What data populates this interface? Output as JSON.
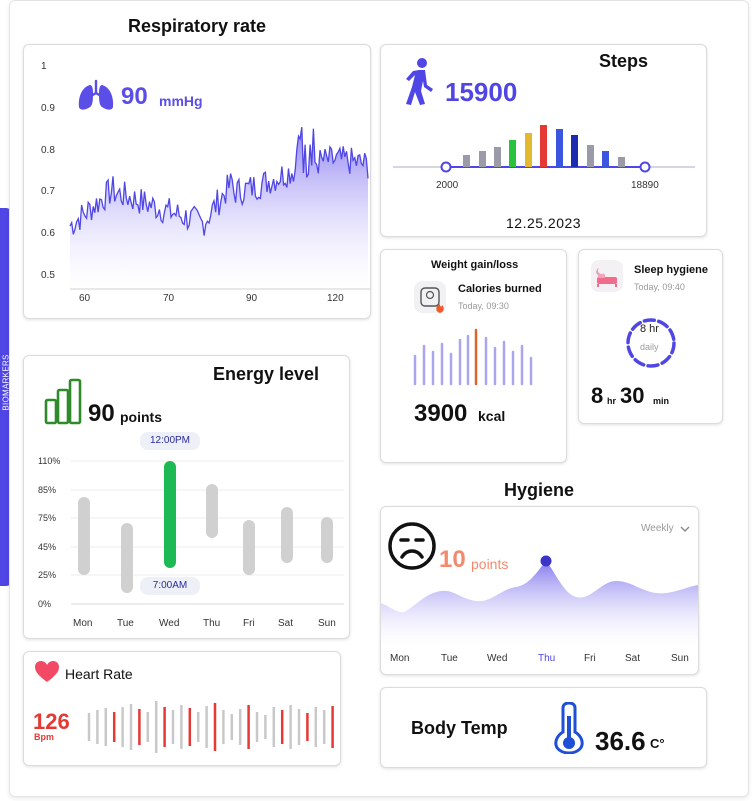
{
  "sidebar": {
    "tab_label": "BIOMARKERS"
  },
  "respiratory": {
    "title": "Respiratory rate",
    "value": "90",
    "unit": "mmHg",
    "y_ticks": [
      "1",
      "0.9",
      "0.8",
      "0.7",
      "0.6",
      "0.5"
    ],
    "x_ticks": [
      "60",
      "70",
      "90",
      "120"
    ]
  },
  "steps": {
    "title": "Steps",
    "value": "15900",
    "range_min": "2000",
    "range_max": "18890",
    "date": "12.25.2023"
  },
  "weight": {
    "title": "Weight gain/loss",
    "subtitle": "Calories burned",
    "time": "Today, 09:30",
    "value": "3900",
    "unit": "kcal"
  },
  "sleep": {
    "title": "Sleep hygiene",
    "time": "Today, 09:40",
    "ring_value": "8 hr",
    "ring_label": "daily",
    "hours": "8",
    "hours_unit": "hr",
    "minutes": "30",
    "minutes_unit": "min"
  },
  "energy": {
    "title": "Energy level",
    "value": "90",
    "unit": "points",
    "top_label": "12:00PM",
    "bottom_label": "7:00AM",
    "y_ticks": [
      "110%",
      "85%",
      "75%",
      "45%",
      "25%",
      "0%"
    ],
    "days": [
      "Mon",
      "Tue",
      "Wed",
      "Thu",
      "Fri",
      "Sat",
      "Sun"
    ]
  },
  "hygiene": {
    "title": "Hygiene",
    "value": "10",
    "unit": "points",
    "period": "Weekly",
    "days": [
      "Mon",
      "Tue",
      "Wed",
      "Thu",
      "Fri",
      "Sat",
      "Sun"
    ]
  },
  "heart": {
    "title": "Heart Rate",
    "value": "126",
    "unit": "Bpm"
  },
  "temp": {
    "title": "Body Temp",
    "value": "36.6",
    "unit": "C°"
  },
  "colors": {
    "accent": "#4f46e5",
    "green": "#1db954",
    "red": "#e53935",
    "orange": "#f26b3a",
    "salmon": "#f28b6e"
  }
}
